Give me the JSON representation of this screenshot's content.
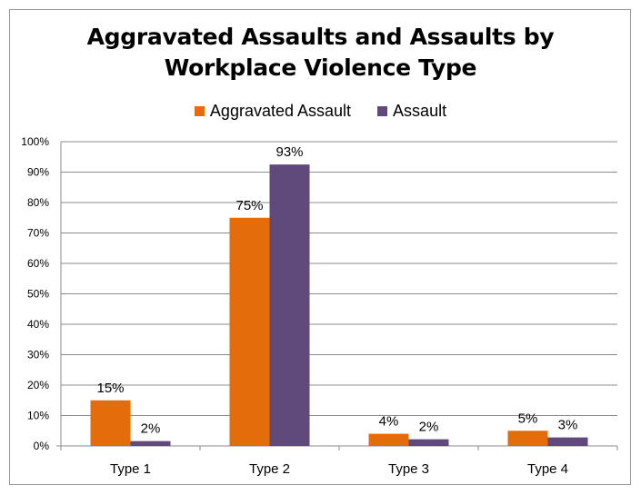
{
  "chart_data": {
    "type": "bar",
    "title_lines": [
      "Aggravated Assaults and Assaults by",
      "Workplace Violence Type"
    ],
    "categories": [
      "Type 1",
      "Type 2",
      "Type 3",
      "Type 4"
    ],
    "series": [
      {
        "name": "Aggravated Assault",
        "color": "#e46c0a",
        "values": [
          15,
          75,
          4,
          5
        ],
        "labels": [
          "15%",
          "75%",
          "4%",
          "5%"
        ]
      },
      {
        "name": "Assault",
        "color": "#604a7b",
        "values": [
          1.6,
          92.5,
          2.2,
          2.8
        ],
        "labels": [
          "2%",
          "93%",
          "2%",
          "3%"
        ]
      }
    ],
    "ylim": [
      0,
      100
    ],
    "y_ticks": [
      "0%",
      "10%",
      "20%",
      "30%",
      "40%",
      "50%",
      "60%",
      "70%",
      "80%",
      "90%",
      "100%"
    ],
    "grid": true,
    "legend_position": "top"
  }
}
